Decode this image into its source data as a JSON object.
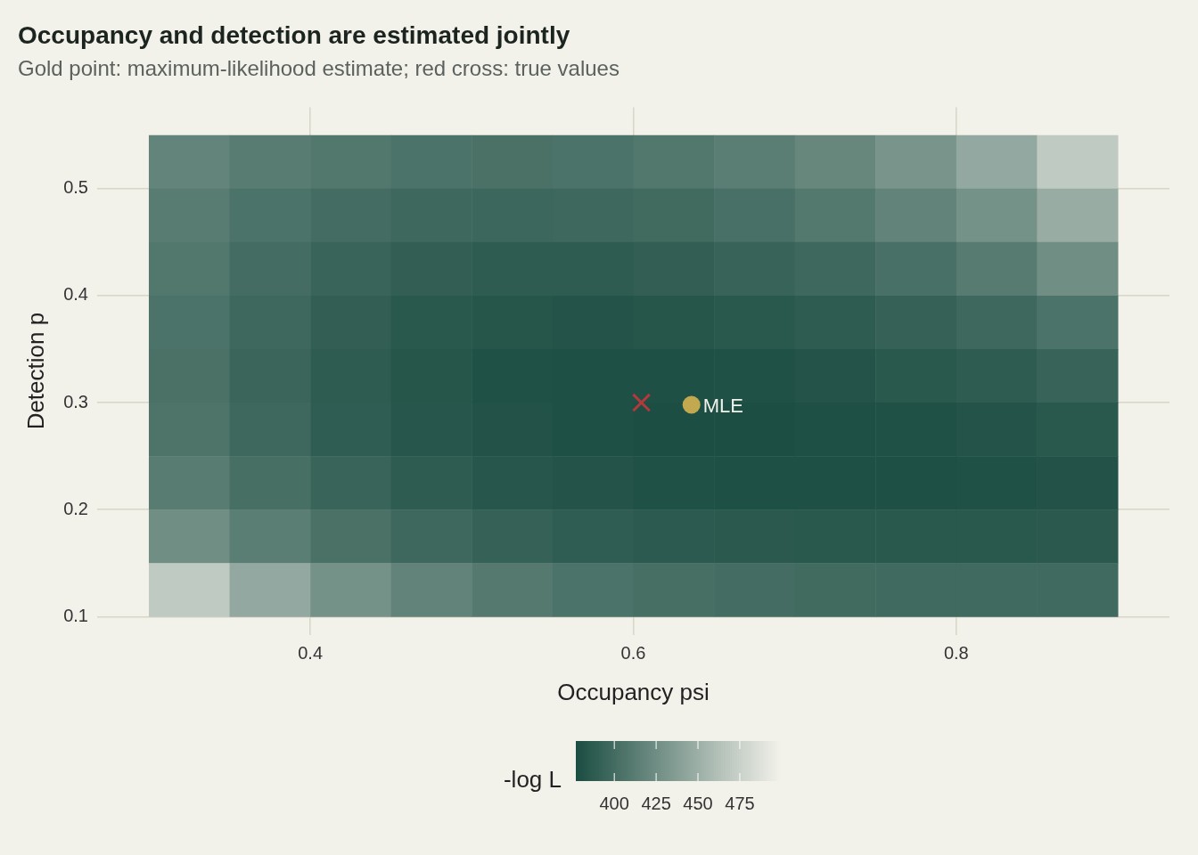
{
  "chart_data": {
    "type": "heatmap",
    "title": "Occupancy and detection are estimated jointly",
    "subtitle": "Gold point: maximum-likelihood estimate; red cross: true values",
    "xlabel": "Occupancy psi",
    "ylabel": "Detection p",
    "clabel": "-log L",
    "x": [
      0.325,
      0.375,
      0.425,
      0.475,
      0.525,
      0.575,
      0.625,
      0.675,
      0.725,
      0.775,
      0.825,
      0.875
    ],
    "y": [
      0.525,
      0.475,
      0.425,
      0.375,
      0.325,
      0.275,
      0.225,
      0.175,
      0.125
    ],
    "cells": [
      [
        418,
        412,
        408,
        405,
        404,
        405,
        408,
        413,
        420,
        430,
        445,
        470
      ],
      [
        412,
        405,
        400,
        397,
        396,
        397,
        399,
        403,
        409,
        417,
        428,
        448
      ],
      [
        408,
        400,
        394,
        390,
        388,
        388,
        390,
        393,
        397,
        403,
        411,
        425
      ],
      [
        405,
        397,
        390,
        385,
        383,
        382,
        383,
        385,
        388,
        392,
        397,
        405
      ],
      [
        404,
        395,
        388,
        383,
        380,
        379,
        379,
        380,
        382,
        385,
        388,
        393
      ],
      [
        406,
        397,
        389,
        384,
        381,
        379,
        378,
        378,
        379,
        380,
        382,
        385
      ],
      [
        412,
        402,
        394,
        388,
        384,
        382,
        380,
        379,
        379,
        379,
        380,
        381
      ],
      [
        425,
        413,
        404,
        397,
        392,
        389,
        387,
        386,
        385,
        385,
        385,
        386
      ],
      [
        470,
        445,
        428,
        417,
        410,
        405,
        402,
        400,
        399,
        398,
        398,
        398
      ]
    ],
    "clim": [
      377,
      499
    ],
    "cticks": [
      400,
      425,
      450,
      475
    ],
    "xlim": [
      0.268,
      0.932
    ],
    "xticks": [
      0.4,
      0.6,
      0.8
    ],
    "ylim": [
      0.083,
      0.576
    ],
    "yticks": [
      0.1,
      0.2,
      0.3,
      0.4,
      0.5
    ],
    "grid": true,
    "series": [
      {
        "type": "scatter",
        "x": [
          0.636
        ],
        "values": [
          0.298
        ],
        "color": "#c2a84e",
        "marker": "circle"
      },
      {
        "type": "scatter",
        "x": [
          0.605
        ],
        "values": [
          0.3
        ],
        "color": "#b2393c",
        "marker": "cross"
      }
    ],
    "annotations": [
      {
        "text": "MLE",
        "x": 0.636,
        "y": 0.298
      }
    ]
  }
}
